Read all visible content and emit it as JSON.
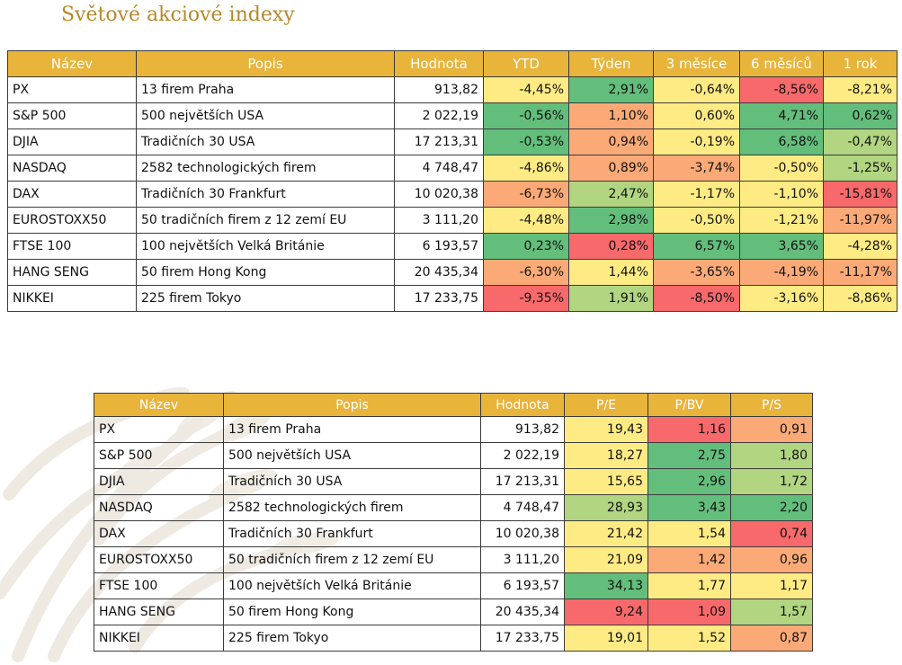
{
  "title": "Světové akciové indexy",
  "colors": {
    "header": "#e8b43a",
    "title": "#b5892a",
    "scale": [
      "#f8696b",
      "#fbaa77",
      "#ffeb84",
      "#b1d580",
      "#63be7b"
    ]
  },
  "performance": {
    "headers": [
      "Název",
      "Popis",
      "Hodnota",
      "YTD",
      "Týden",
      "3 měsíce",
      "6 měsíců",
      "1 rok"
    ],
    "rows": [
      {
        "name": "PX",
        "desc": "13 firem Praha",
        "value": "913,82",
        "vals": [
          "-4,45%",
          "2,91%",
          "-0,64%",
          "-8,56%",
          "-8,21%"
        ]
      },
      {
        "name": "S&P 500",
        "desc": "500 největších USA",
        "value": "2 022,19",
        "vals": [
          "-0,56%",
          "1,10%",
          "0,60%",
          "4,71%",
          "0,62%"
        ]
      },
      {
        "name": "DJIA",
        "desc": "Tradičních 30 USA",
        "value": "17 213,31",
        "vals": [
          "-0,53%",
          "0,94%",
          "-0,19%",
          "6,58%",
          "-0,47%"
        ]
      },
      {
        "name": "NASDAQ",
        "desc": "2582 technologických firem",
        "value": "4 748,47",
        "vals": [
          "-4,86%",
          "0,89%",
          "-3,74%",
          "-0,50%",
          "-1,25%"
        ]
      },
      {
        "name": "DAX",
        "desc": "Tradičních 30 Frankfurt",
        "value": "10 020,38",
        "vals": [
          "-6,73%",
          "2,47%",
          "-1,17%",
          "-1,10%",
          "-15,81%"
        ]
      },
      {
        "name": "EUROSTOXX50",
        "desc": "50 tradičních firem z 12 zemí EU",
        "value": "3 111,20",
        "vals": [
          "-4,48%",
          "2,98%",
          "-0,50%",
          "-1,21%",
          "-11,97%"
        ]
      },
      {
        "name": "FTSE 100",
        "desc": "100 největších Velká Británie",
        "value": "6 193,57",
        "vals": [
          "0,23%",
          "0,28%",
          "6,57%",
          "3,65%",
          "-4,28%"
        ]
      },
      {
        "name": "HANG SENG",
        "desc": "50 firem Hong Kong",
        "value": "20 435,34",
        "vals": [
          "-6,30%",
          "1,44%",
          "-3,65%",
          "-4,19%",
          "-11,17%"
        ]
      },
      {
        "name": "NIKKEI",
        "desc": "225 firem Tokyo",
        "value": "17 233,75",
        "vals": [
          "-9,35%",
          "1,91%",
          "-8,50%",
          "-3,16%",
          "-8,86%"
        ]
      }
    ],
    "heat": [
      [
        2,
        4,
        2,
        0,
        2
      ],
      [
        4,
        1,
        2,
        4,
        4
      ],
      [
        4,
        1,
        2,
        4,
        3
      ],
      [
        2,
        1,
        1,
        2,
        3
      ],
      [
        1,
        3,
        2,
        2,
        0
      ],
      [
        2,
        4,
        2,
        2,
        1
      ],
      [
        4,
        0,
        4,
        4,
        2
      ],
      [
        1,
        2,
        1,
        1,
        1
      ],
      [
        0,
        3,
        0,
        2,
        2
      ]
    ]
  },
  "valuation": {
    "headers": [
      "Název",
      "Popis",
      "Hodnota",
      "P/E",
      "P/BV",
      "P/S"
    ],
    "rows": [
      {
        "name": "PX",
        "desc": "13 firem Praha",
        "value": "913,82",
        "vals": [
          "19,43",
          "1,16",
          "0,91"
        ]
      },
      {
        "name": "S&P 500",
        "desc": "500 největších USA",
        "value": "2 022,19",
        "vals": [
          "18,27",
          "2,75",
          "1,80"
        ]
      },
      {
        "name": "DJIA",
        "desc": "Tradičních 30 USA",
        "value": "17 213,31",
        "vals": [
          "15,65",
          "2,96",
          "1,72"
        ]
      },
      {
        "name": "NASDAQ",
        "desc": "2582 technologických firem",
        "value": "4 748,47",
        "vals": [
          "28,93",
          "3,43",
          "2,20"
        ]
      },
      {
        "name": "DAX",
        "desc": "Tradičních 30 Frankfurt",
        "value": "10 020,38",
        "vals": [
          "21,42",
          "1,54",
          "0,74"
        ]
      },
      {
        "name": "EUROSTOXX50",
        "desc": "50 tradičních firem z 12 zemí EU",
        "value": "3 111,20",
        "vals": [
          "21,09",
          "1,42",
          "0,96"
        ]
      },
      {
        "name": "FTSE 100",
        "desc": "100 největších Velká Británie",
        "value": "6 193,57",
        "vals": [
          "34,13",
          "1,77",
          "1,17"
        ]
      },
      {
        "name": "HANG SENG",
        "desc": "50 firem Hong Kong",
        "value": "20 435,34",
        "vals": [
          "9,24",
          "1,09",
          "1,57"
        ]
      },
      {
        "name": "NIKKEI",
        "desc": "225 firem Tokyo",
        "value": "17 233,75",
        "vals": [
          "19,01",
          "1,52",
          "0,87"
        ]
      }
    ],
    "heat": [
      [
        2,
        0,
        1
      ],
      [
        2,
        4,
        3
      ],
      [
        2,
        4,
        3
      ],
      [
        3,
        4,
        4
      ],
      [
        2,
        2,
        0
      ],
      [
        2,
        1,
        1
      ],
      [
        4,
        2,
        2
      ],
      [
        0,
        0,
        3
      ],
      [
        2,
        2,
        1
      ]
    ]
  }
}
